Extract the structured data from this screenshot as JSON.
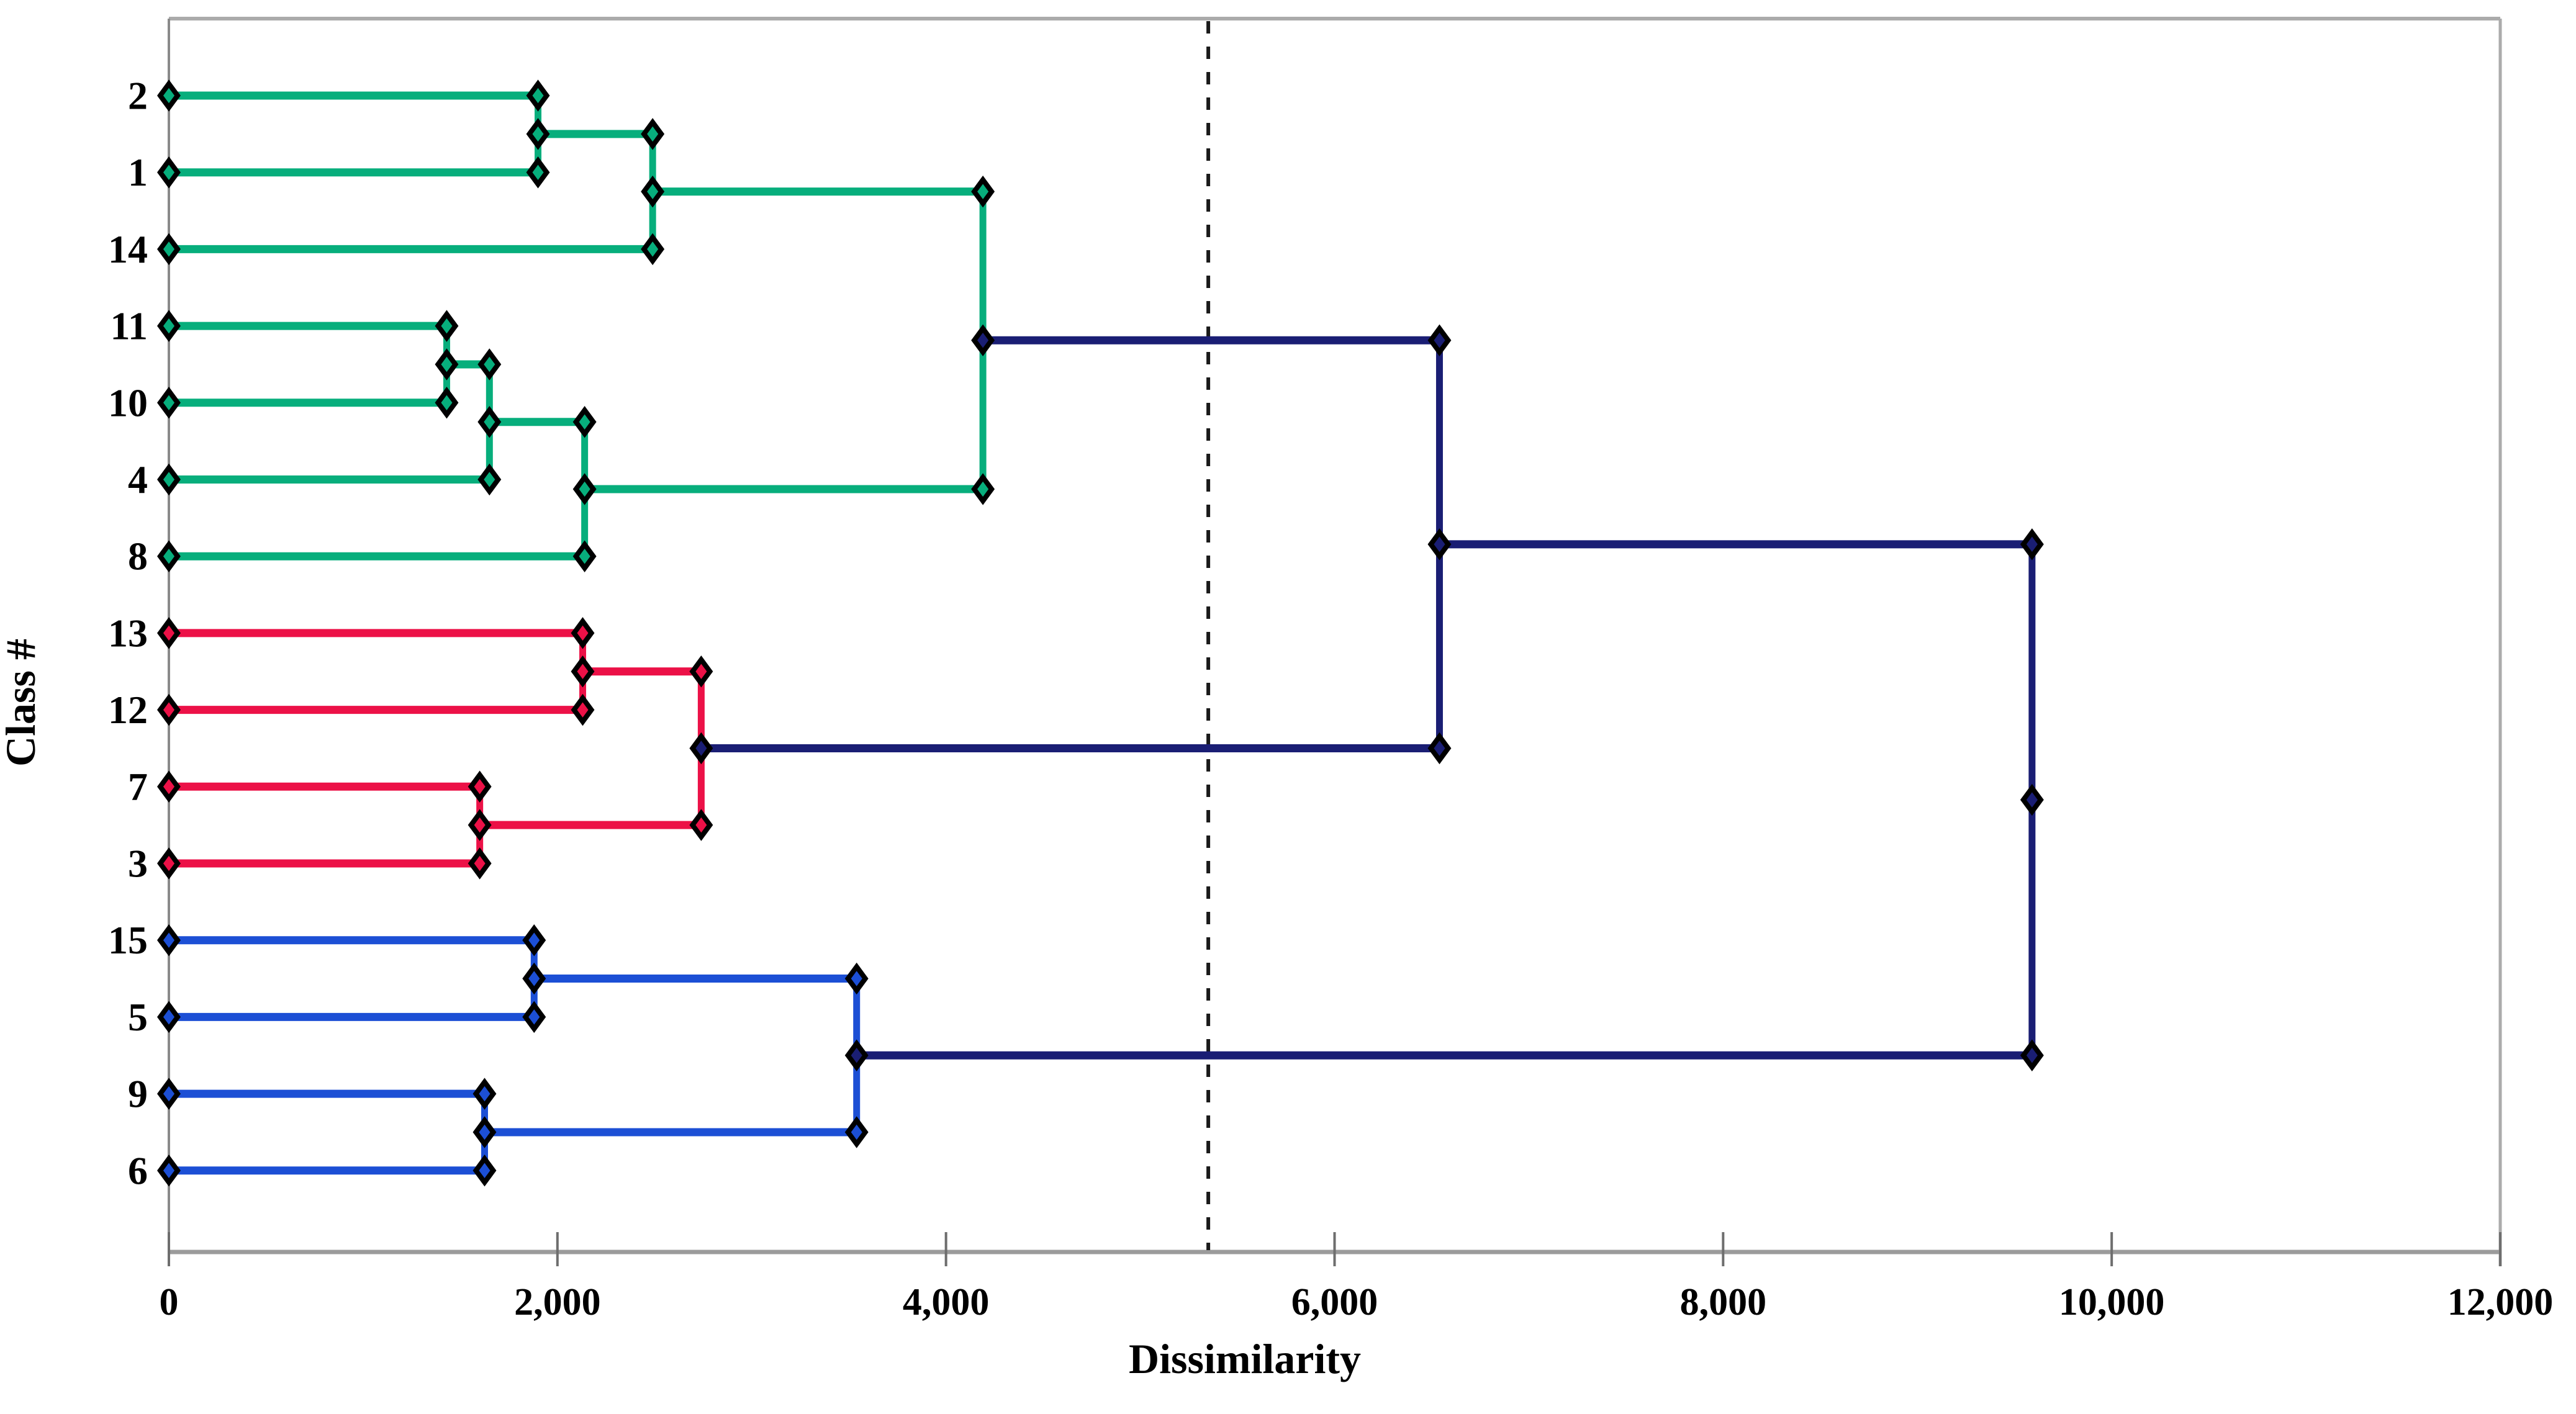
{
  "chart_data": {
    "type": "dendrogram",
    "orientation": "horizontal",
    "title": "",
    "xlabel": "Dissimilarity",
    "ylabel": "Class #",
    "xlim": [
      0,
      12000
    ],
    "grid": false,
    "xticks": [
      {
        "v": 0,
        "label": "0"
      },
      {
        "v": 2000,
        "label": "2,000"
      },
      {
        "v": 4000,
        "label": "4,000"
      },
      {
        "v": 6000,
        "label": "6,000"
      },
      {
        "v": 8000,
        "label": "8,000"
      },
      {
        "v": 10000,
        "label": "10,000"
      },
      {
        "v": 12000,
        "label": "12,000"
      }
    ],
    "colors": {
      "green": "#07AE7C",
      "red": "#EC1147",
      "blue": "#1C4FD5",
      "navy": "#1A1E74",
      "frame": "#ABABAB",
      "axis_line": "#9B9B9B",
      "tick": "#6E6E6E",
      "cutoff": "#1A1A1A",
      "marker_edge": "#000000"
    },
    "leaves": [
      {
        "id": "2",
        "label": "2",
        "cluster": "green"
      },
      {
        "id": "1",
        "label": "1",
        "cluster": "green"
      },
      {
        "id": "14",
        "label": "14",
        "cluster": "green"
      },
      {
        "id": "11",
        "label": "11",
        "cluster": "green"
      },
      {
        "id": "10",
        "label": "10",
        "cluster": "green"
      },
      {
        "id": "4",
        "label": "4",
        "cluster": "green"
      },
      {
        "id": "8",
        "label": "8",
        "cluster": "green"
      },
      {
        "id": "13",
        "label": "13",
        "cluster": "red"
      },
      {
        "id": "12",
        "label": "12",
        "cluster": "red"
      },
      {
        "id": "7",
        "label": "7",
        "cluster": "red"
      },
      {
        "id": "3",
        "label": "3",
        "cluster": "red"
      },
      {
        "id": "15",
        "label": "15",
        "cluster": "blue"
      },
      {
        "id": "5",
        "label": "5",
        "cluster": "blue"
      },
      {
        "id": "9",
        "label": "9",
        "cluster": "blue"
      },
      {
        "id": "6",
        "label": "6",
        "cluster": "blue"
      }
    ],
    "merges": [
      {
        "id": "m1",
        "a": "2",
        "b": "1",
        "dist": 1900,
        "color": "green",
        "node_color": "green"
      },
      {
        "id": "m2",
        "a": "m1",
        "b": "14",
        "dist": 2490,
        "color": "green",
        "node_color": "green"
      },
      {
        "id": "m3",
        "a": "11",
        "b": "10",
        "dist": 1430,
        "color": "green",
        "node_color": "green"
      },
      {
        "id": "m4",
        "a": "m3",
        "b": "4",
        "dist": 1650,
        "color": "green",
        "node_color": "green"
      },
      {
        "id": "m5",
        "a": "m4",
        "b": "8",
        "dist": 2140,
        "color": "green",
        "node_color": "green"
      },
      {
        "id": "m6",
        "a": "m2",
        "b": "m5",
        "dist": 4190,
        "color": "green",
        "node_color": "navy"
      },
      {
        "id": "m7",
        "a": "13",
        "b": "12",
        "dist": 2130,
        "color": "red",
        "node_color": "red"
      },
      {
        "id": "m8",
        "a": "7",
        "b": "3",
        "dist": 1600,
        "color": "red",
        "node_color": "red"
      },
      {
        "id": "m9",
        "a": "m7",
        "b": "m8",
        "dist": 2740,
        "color": "red",
        "node_color": "navy"
      },
      {
        "id": "m10",
        "a": "15",
        "b": "5",
        "dist": 1880,
        "color": "blue",
        "node_color": "blue"
      },
      {
        "id": "m11",
        "a": "9",
        "b": "6",
        "dist": 1625,
        "color": "blue",
        "node_color": "blue"
      },
      {
        "id": "m12",
        "a": "m10",
        "b": "m11",
        "dist": 3540,
        "color": "blue",
        "node_color": "navy"
      },
      {
        "id": "m13",
        "a": "m6",
        "b": "m9",
        "dist": 6540,
        "color": "navy",
        "node_color": "navy"
      },
      {
        "id": "m14",
        "a": "m13",
        "b": "m12",
        "dist": 9590,
        "color": "navy",
        "node_color": "navy"
      }
    ],
    "cutoff_line": {
      "x": 5350,
      "style": "dashed"
    }
  }
}
